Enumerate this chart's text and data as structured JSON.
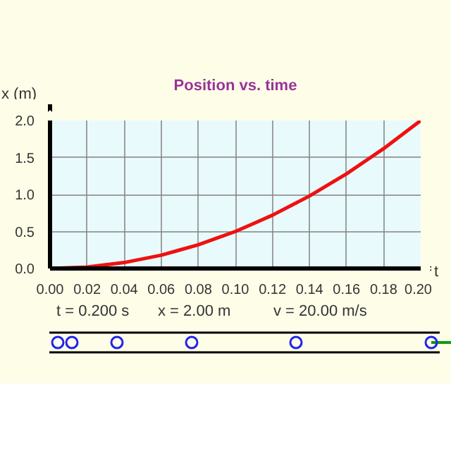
{
  "chart_data": {
    "type": "line",
    "title": "Position vs. time",
    "xlabel": "t",
    "ylabel": "x (m)",
    "annotations": [
      "t = 0.200 s",
      "x = 2.00 m",
      "v = 20.00 m/s"
    ],
    "x": [
      0,
      0.01,
      0.02,
      0.03,
      0.04,
      0.05,
      0.06,
      0.07,
      0.08,
      0.09,
      0.1,
      0.11,
      0.12,
      0.13,
      0.14,
      0.15,
      0.16,
      0.17,
      0.18,
      0.19,
      0.2
    ],
    "series": [
      {
        "color": "#ee1111",
        "values": [
          0,
          0.01,
          0.02,
          0.05,
          0.08,
          0.13,
          0.18,
          0.25,
          0.32,
          0.41,
          0.5,
          0.61,
          0.72,
          0.85,
          0.98,
          1.13,
          1.28,
          1.45,
          1.62,
          1.81,
          2.0
        ]
      }
    ],
    "xlim": [
      0,
      0.2
    ],
    "ylim": [
      0,
      2.0
    ],
    "xticks": [
      {
        "value": 0,
        "label": "0.00"
      },
      {
        "value": 0.02,
        "label": "0.02"
      },
      {
        "value": 0.04,
        "label": "0.04"
      },
      {
        "value": 0.06,
        "label": "0.06"
      },
      {
        "value": 0.08,
        "label": "0.08"
      },
      {
        "value": 0.1,
        "label": "0.10"
      },
      {
        "value": 0.12,
        "label": "0.12"
      },
      {
        "value": 0.14,
        "label": "0.14"
      },
      {
        "value": 0.16,
        "label": "0.16"
      },
      {
        "value": 0.18,
        "label": "0.18"
      },
      {
        "value": 0.2,
        "label": "0.20"
      }
    ],
    "yticks": [
      {
        "value": 0,
        "label": "0.0"
      },
      {
        "value": 0.5,
        "label": "0.5"
      },
      {
        "value": 1.0,
        "label": "1.0"
      },
      {
        "value": 1.5,
        "label": "1.5"
      },
      {
        "value": 2.0,
        "label": "2.0"
      }
    ],
    "grid": true,
    "line_style": "solid"
  }
}
